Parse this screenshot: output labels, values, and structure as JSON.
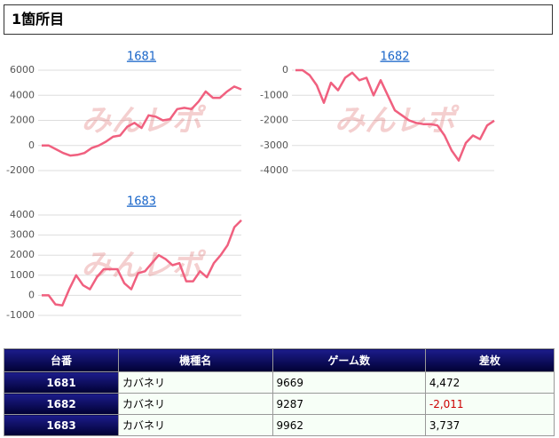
{
  "header": {
    "title": "1箇所目"
  },
  "watermark": "みんレポ",
  "chart_data": [
    {
      "type": "line",
      "title": "1681",
      "color": "#f0607f",
      "grid": true,
      "ylim": [
        -2000,
        6000
      ],
      "yticks": [
        -2000,
        0,
        2000,
        4000,
        6000
      ],
      "values": [
        0,
        0,
        -300,
        -600,
        -800,
        -750,
        -600,
        -200,
        0,
        300,
        700,
        800,
        1500,
        1800,
        1400,
        2400,
        2300,
        2000,
        2100,
        2900,
        3000,
        2900,
        3500,
        4300,
        3800,
        3800,
        4300,
        4700,
        4472
      ]
    },
    {
      "type": "line",
      "title": "1682",
      "color": "#f0607f",
      "grid": true,
      "ylim": [
        -4000,
        0
      ],
      "yticks": [
        -4000,
        -3000,
        -2000,
        -1000,
        0
      ],
      "values": [
        0,
        0,
        -200,
        -600,
        -1300,
        -500,
        -800,
        -300,
        -100,
        -400,
        -300,
        -1000,
        -400,
        -1000,
        -1600,
        -1800,
        -2000,
        -2100,
        -2150,
        -2150,
        -2200,
        -2600,
        -3200,
        -3600,
        -2900,
        -2600,
        -2750,
        -2200,
        -2011
      ]
    },
    {
      "type": "line",
      "title": "1683",
      "color": "#f0607f",
      "grid": true,
      "ylim": [
        -1000,
        4000
      ],
      "yticks": [
        -1000,
        0,
        1000,
        2000,
        3000,
        4000
      ],
      "values": [
        0,
        0,
        -450,
        -500,
        300,
        1000,
        500,
        300,
        900,
        1300,
        1300,
        1300,
        600,
        300,
        1100,
        1200,
        1600,
        2000,
        1800,
        1500,
        1600,
        700,
        700,
        1200,
        900,
        1600,
        2000,
        2500,
        3400,
        3737
      ]
    }
  ],
  "table": {
    "columns": [
      "台番",
      "機種名",
      "ゲーム数",
      "差枚"
    ],
    "rows": [
      [
        "1681",
        "カバネリ",
        "9669",
        "4,472"
      ],
      [
        "1682",
        "カバネリ",
        "9287",
        "-2,011"
      ],
      [
        "1683",
        "カバネリ",
        "9962",
        "3,737"
      ]
    ]
  }
}
